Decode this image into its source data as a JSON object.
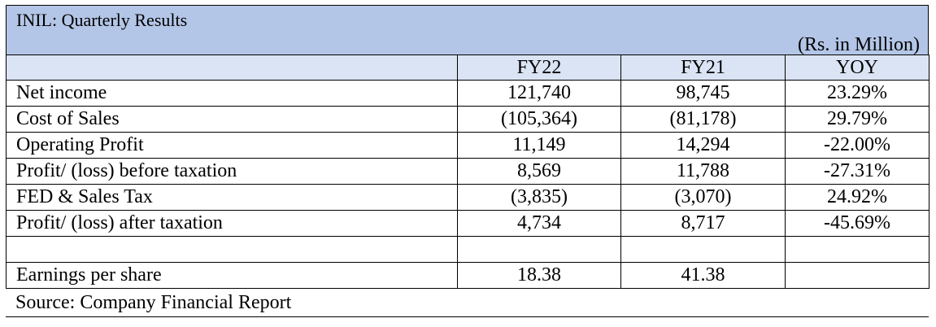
{
  "title": "INIL: Quarterly Results",
  "unit": "(Rs. in Million)",
  "columns": [
    "",
    "FY22",
    "FY21",
    "YOY"
  ],
  "rows": [
    {
      "label": "Net income",
      "fy22": "121,740",
      "fy21": "98,745",
      "yoy": "23.29%"
    },
    {
      "label": "Cost of Sales",
      "fy22": "(105,364)",
      "fy21": "(81,178)",
      "yoy": "29.79%"
    },
    {
      "label": "Operating Profit",
      "fy22": "11,149",
      "fy21": "14,294",
      "yoy": "-22.00%"
    },
    {
      "label": "Profit/ (loss) before taxation",
      "fy22": "8,569",
      "fy21": "11,788",
      "yoy": "-27.31%"
    },
    {
      "label": "FED & Sales Tax",
      "fy22": "(3,835)",
      "fy21": "(3,070)",
      "yoy": "24.92%"
    },
    {
      "label": "Profit/ (loss) after taxation",
      "fy22": "4,734",
      "fy21": "8,717",
      "yoy": "-45.69%"
    },
    {
      "label": "",
      "fy22": "",
      "fy21": "",
      "yoy": ""
    },
    {
      "label": "Earnings per share",
      "fy22": "18.38",
      "fy21": "41.38",
      "yoy": ""
    }
  ],
  "source": "Source: Company Financial Report",
  "colors": {
    "title_bg": "#b4c6e7",
    "header_bg": "#dbe4f4"
  }
}
